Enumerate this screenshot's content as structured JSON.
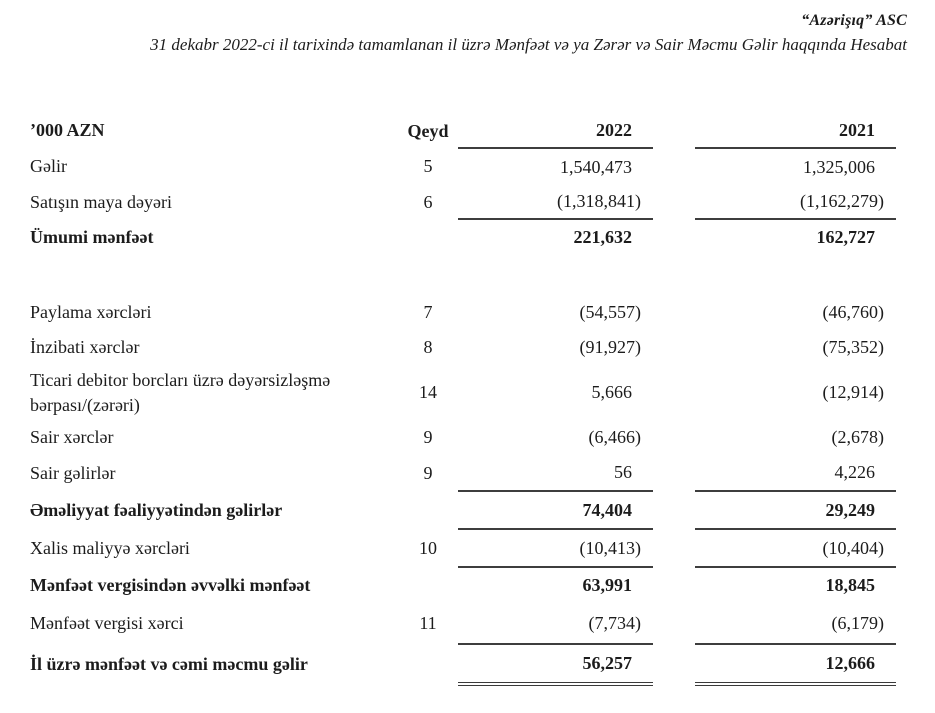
{
  "header": {
    "company": "“Azərişıq” ASC",
    "statement_title": "31 dekabr 2022-ci il tarixində tamamlanan il üzrə Mənfəət və ya Zərər və Sair Məcmu Gəlir haqqında Hesabat"
  },
  "table": {
    "columns": {
      "unit": "’000 AZN",
      "note": "Qeyd",
      "year_2022": "2022",
      "year_2021": "2021"
    },
    "rows": [
      {
        "label": "Gəlir",
        "note": "5",
        "y2022": "1,540,473",
        "y2021": "1,325,006"
      },
      {
        "label": "Satışın maya dəyəri",
        "note": "6",
        "y2022": "(1,318,841)",
        "y2021": "(1,162,279)"
      },
      {
        "label": "Ümumi mənfəət",
        "note": "",
        "y2022": "221,632",
        "y2021": "162,727"
      },
      {
        "label": "Paylama xərcləri",
        "note": "7",
        "y2022": "(54,557)",
        "y2021": "(46,760)"
      },
      {
        "label": "İnzibati xərclər",
        "note": "8",
        "y2022": "(91,927)",
        "y2021": "(75,352)"
      },
      {
        "label": "Ticari debitor borcları üzrə dəyərsizləşmə bərpası/(zərəri)",
        "note": "14",
        "y2022": "5,666",
        "y2021": "(12,914)"
      },
      {
        "label": "Sair xərclər",
        "note": "9",
        "y2022": "(6,466)",
        "y2021": "(2,678)"
      },
      {
        "label": "Sair gəlirlər",
        "note": "9",
        "y2022": "56",
        "y2021": "4,226"
      },
      {
        "label": "Əməliyyat fəaliyyətindən gəlirlər",
        "note": "",
        "y2022": "74,404",
        "y2021": "29,249"
      },
      {
        "label": "Xalis maliyyə xərcləri",
        "note": "10",
        "y2022": "(10,413)",
        "y2021": "(10,404)"
      },
      {
        "label": "Mənfəət vergisindən əvvəlki mənfəət",
        "note": "",
        "y2022": "63,991",
        "y2021": "18,845"
      },
      {
        "label": "Mənfəət vergisi xərci",
        "note": "11",
        "y2022": "(7,734)",
        "y2021": "(6,179)"
      },
      {
        "label": "İl üzrə mənfəət və cəmi məcmu gəlir",
        "note": "",
        "y2022": "56,257",
        "y2021": "12,666"
      }
    ]
  },
  "colors": {
    "text": "#1c1c1c",
    "rule_line": "#3e3e3e",
    "background": "#ffffff"
  }
}
